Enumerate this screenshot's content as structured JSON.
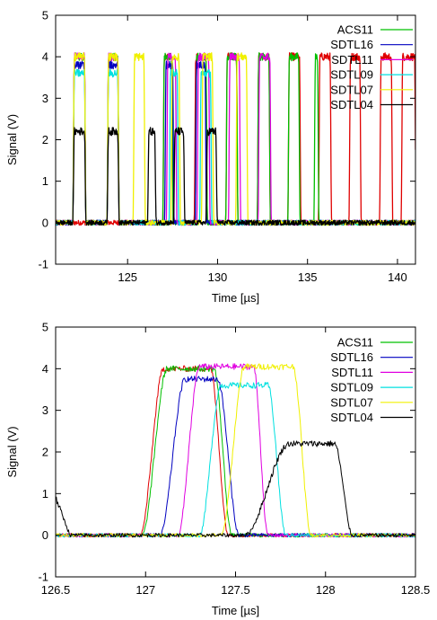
{
  "chart_data": [
    {
      "type": "line",
      "xlabel": "Time [µs]",
      "ylabel": "Signal (V)",
      "xlim": [
        121,
        141
      ],
      "ylim": [
        -1,
        5
      ],
      "xticks": [
        125,
        130,
        135,
        140
      ],
      "yticks": [
        -1,
        0,
        1,
        2,
        3,
        4,
        5
      ],
      "legend_position": "top-right",
      "grid": false,
      "series": [
        {
          "name": "ACS11",
          "color": "#00c000",
          "high": 4.0,
          "pulses": [
            [
              121.95,
              122.6
            ],
            [
              123.85,
              124.45
            ],
            [
              126.95,
              127.45
            ],
            [
              128.75,
              129.35
            ],
            [
              130.45,
              131.05
            ],
            [
              132.2,
              132.85
            ],
            [
              133.9,
              134.5
            ],
            [
              135.35,
              135.55
            ]
          ]
        },
        {
          "name": "SDTL16",
          "color": "#0000c0",
          "high": 3.8,
          "pulses": [
            [
              121.95,
              122.6
            ],
            [
              123.85,
              124.45
            ],
            [
              127.05,
              127.5
            ],
            [
              128.75,
              129.3
            ]
          ]
        },
        {
          "name": "SDTL11",
          "color": "#e000e0",
          "high": 4.0,
          "pulses": [
            [
              121.95,
              122.6
            ],
            [
              123.85,
              124.45
            ],
            [
              127.15,
              127.65
            ],
            [
              128.85,
              129.5
            ],
            [
              130.6,
              131.2
            ],
            [
              132.25,
              132.9
            ]
          ]
        },
        {
          "name": "SDTL09",
          "color": "#00e0e0",
          "high": 3.6,
          "pulses": [
            [
              121.95,
              122.6
            ],
            [
              123.85,
              124.45
            ],
            [
              127.3,
              127.75
            ],
            [
              129.0,
              129.6
            ]
          ]
        },
        {
          "name": "SDTL07",
          "color": "#f0f000",
          "high": 4.0,
          "pulses": [
            [
              121.95,
              122.6
            ],
            [
              123.85,
              124.45
            ],
            [
              125.3,
              125.9
            ],
            [
              127.4,
              127.85
            ],
            [
              129.1,
              129.7
            ],
            [
              131.0,
              131.6
            ]
          ]
        },
        {
          "name": "SDTL04",
          "color": "#000000",
          "high": 2.2,
          "pulses": [
            [
              121.95,
              122.6
            ],
            [
              123.85,
              124.45
            ],
            [
              126.1,
              126.5
            ],
            [
              127.55,
              128.1
            ],
            [
              129.35,
              129.9
            ]
          ]
        },
        {
          "color": "#e00000",
          "high": 4.0,
          "pulses": [
            [
              126.95,
              127.45
            ],
            [
              128.7,
              129.35
            ],
            [
              130.45,
              131.05
            ],
            [
              132.2,
              132.85
            ],
            [
              133.9,
              134.55
            ],
            [
              135.6,
              136.25
            ],
            [
              137.3,
              137.9
            ],
            [
              139.0,
              139.65
            ],
            [
              140.2,
              140.95
            ]
          ]
        }
      ]
    },
    {
      "type": "line",
      "xlabel": "Time [µs]",
      "ylabel": "Signal (V)",
      "xlim": [
        126.5,
        128.5
      ],
      "ylim": [
        -1,
        5
      ],
      "xticks": [
        126.5,
        127,
        127.5,
        128,
        128.5
      ],
      "yticks": [
        -1,
        0,
        1,
        2,
        3,
        4,
        5
      ],
      "legend_position": "top-right",
      "grid": false,
      "series": [
        {
          "name": "ACS11",
          "color": "#00c000",
          "high": 4.0,
          "rise": [
            126.98,
            127.12
          ],
          "fall": [
            127.38,
            127.48
          ]
        },
        {
          "name": "SDTL16",
          "color": "#0000c0",
          "high": 3.75,
          "rise": [
            127.08,
            127.22
          ],
          "fall": [
            127.4,
            127.52
          ]
        },
        {
          "name": "SDTL11",
          "color": "#e000e0",
          "high": 4.05,
          "rise": [
            127.18,
            127.3
          ],
          "fall": [
            127.6,
            127.68
          ]
        },
        {
          "name": "SDTL09",
          "color": "#00e0e0",
          "high": 3.6,
          "rise": [
            127.3,
            127.42
          ],
          "fall": [
            127.68,
            127.78
          ]
        },
        {
          "name": "SDTL07",
          "color": "#f0f000",
          "high": 4.05,
          "rise": [
            127.42,
            127.55
          ],
          "fall": [
            127.82,
            127.92
          ]
        },
        {
          "name": "SDTL04",
          "color": "#000000",
          "high": 2.2,
          "rise": [
            127.55,
            127.8
          ],
          "fall": [
            128.05,
            128.15
          ]
        },
        {
          "color": "#e00000",
          "high": 4.0,
          "rise": [
            126.97,
            127.1
          ],
          "fall": [
            127.36,
            127.46
          ]
        }
      ]
    }
  ]
}
